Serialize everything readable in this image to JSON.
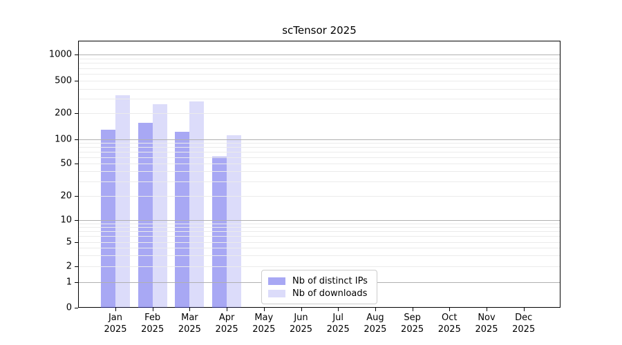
{
  "chart_data": {
    "type": "bar",
    "title": "scTensor 2025",
    "xlabel": "",
    "ylabel": "",
    "yscale": "symlog",
    "grid": "on",
    "ylim": [
      0,
      1400
    ],
    "yticks": [
      0,
      1,
      2,
      5,
      10,
      20,
      50,
      100,
      200,
      500,
      1000
    ],
    "categories": [
      {
        "month": "Jan",
        "year": "2025"
      },
      {
        "month": "Feb",
        "year": "2025"
      },
      {
        "month": "Mar",
        "year": "2025"
      },
      {
        "month": "Apr",
        "year": "2025"
      },
      {
        "month": "May",
        "year": "2025"
      },
      {
        "month": "Jun",
        "year": "2025"
      },
      {
        "month": "Jul",
        "year": "2025"
      },
      {
        "month": "Aug",
        "year": "2025"
      },
      {
        "month": "Sep",
        "year": "2025"
      },
      {
        "month": "Oct",
        "year": "2025"
      },
      {
        "month": "Nov",
        "year": "2025"
      },
      {
        "month": "Dec",
        "year": "2025"
      }
    ],
    "series": [
      {
        "name": "Nb of distinct IPs",
        "color": "rgba(62,62,230,0.45)",
        "color_hex_on_white": "#a7a7f1",
        "values": [
          130,
          155,
          122,
          61,
          0,
          0,
          0,
          0,
          0,
          0,
          0,
          0
        ]
      },
      {
        "name": "Nb of downloads",
        "color": "rgba(62,62,230,0.18)",
        "color_hex_on_white": "#dcdcf9",
        "values": [
          330,
          260,
          280,
          112,
          0,
          0,
          0,
          0,
          0,
          0,
          0,
          0
        ]
      }
    ],
    "legend_position": "lower center-left inside plot"
  },
  "colors": {
    "major_gridline": "#b0b0b0",
    "minor_gridline": "#ebebeb",
    "axis_spine": "#000000",
    "background": "#ffffff"
  }
}
